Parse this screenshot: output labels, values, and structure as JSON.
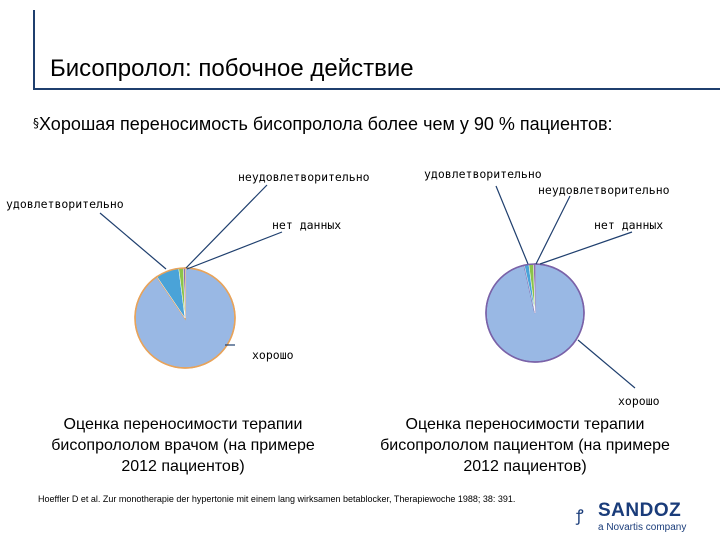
{
  "slide": {
    "title": "Бисопролол: побочное действие",
    "bullet_mark": "§",
    "bullet_text": "Хорошая переносимость бисопролола более чем у 90 % пациентов:"
  },
  "chart_data": [
    {
      "type": "pie",
      "title": "",
      "categories": [
        "хорошо",
        "удовлетворительно",
        "неудовлетворительно",
        "нет данных"
      ],
      "values": [
        90.5,
        7.5,
        1.5,
        0.5
      ],
      "colors": [
        "#99b8e4",
        "#4aa3d8",
        "#8bc34a",
        "#6a3d9a"
      ],
      "labels": {
        "good": "хорошо",
        "satisfactory": "удовлетворительно",
        "unsatisfactory": "неудовлетворительно",
        "no_data": "нет данных"
      },
      "caption": "Оценка переносимости терапии бисопрололом врачом (на примере 2012 пациентов)"
    },
    {
      "type": "pie",
      "title": "",
      "categories": [
        "хорошо",
        "удовлетворительно",
        "неудовлетворительно",
        "нет данных"
      ],
      "values": [
        96.5,
        1.5,
        1.5,
        0.5
      ],
      "colors": [
        "#99b8e4",
        "#4aa3d8",
        "#8bc34a",
        "#6a3d9a"
      ],
      "labels": {
        "good": "хорошо",
        "satisfactory": "удовлетворительно",
        "unsatisfactory": "неудовлетворительно",
        "no_data": "нет данных"
      },
      "caption": "Оценка переносимости терапии бисопрололом пациентом (на примере 2012 пациентов)"
    }
  ],
  "footnote": "Hoeffler D et al. Zur monotherapie der hypertonie mit einem lang wirksamen betablocker, Therapiewoche 1988; 38: 391.",
  "logo": {
    "icon": "sandoz-logo-icon",
    "name": "SANDOZ",
    "sub": "a Novartis company"
  }
}
